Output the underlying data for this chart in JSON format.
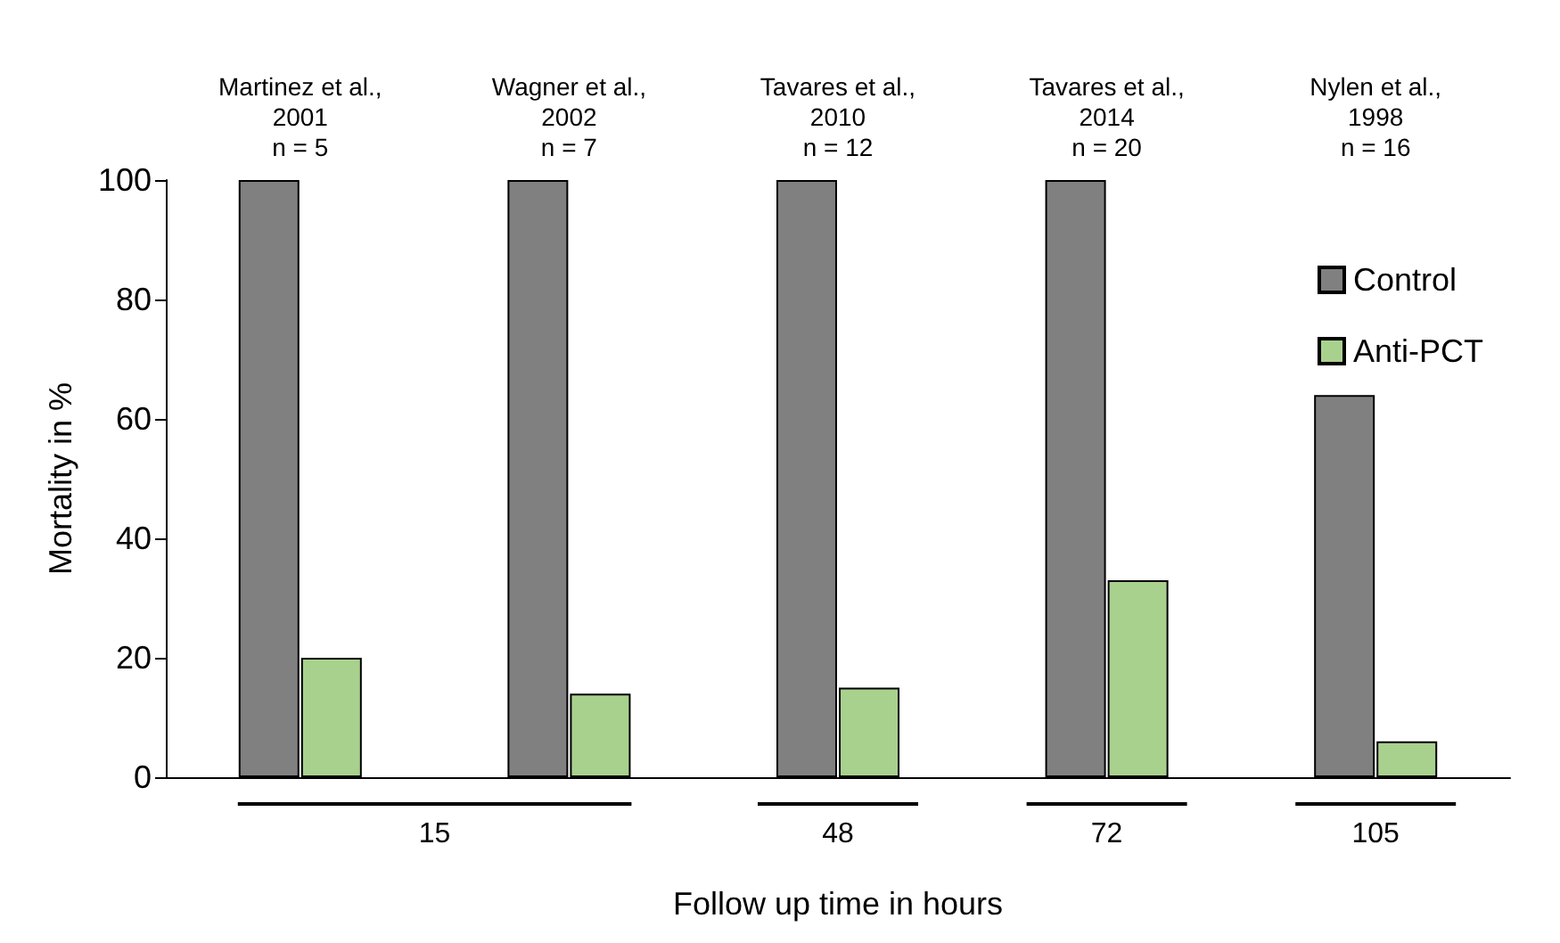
{
  "chart_data": {
    "type": "bar",
    "categories": [
      "Martinez et al.,\n2001\nn = 5",
      "Wagner et al.,\n2002\nn = 7",
      "Tavares et al.,\n2010\nn = 12",
      "Tavares et al.,\n2014\nn = 20",
      "Nylen et al.,\n1998\nn = 16"
    ],
    "series": [
      {
        "name": "Control",
        "color": "#808080",
        "values": [
          100,
          100,
          100,
          100,
          64
        ]
      },
      {
        "name": "Anti-PCT",
        "color": "#a9d18e",
        "values": [
          20,
          14,
          15,
          33,
          6
        ]
      }
    ],
    "ylabel": "Mortality in %",
    "xlabel": "Follow up time in hours",
    "annotations": [
      "15",
      "48",
      "72",
      "105"
    ],
    "ylim": [
      0,
      100
    ],
    "yticks": [
      0,
      20,
      40,
      60,
      80,
      100
    ],
    "grid": false,
    "legend": "top right"
  }
}
